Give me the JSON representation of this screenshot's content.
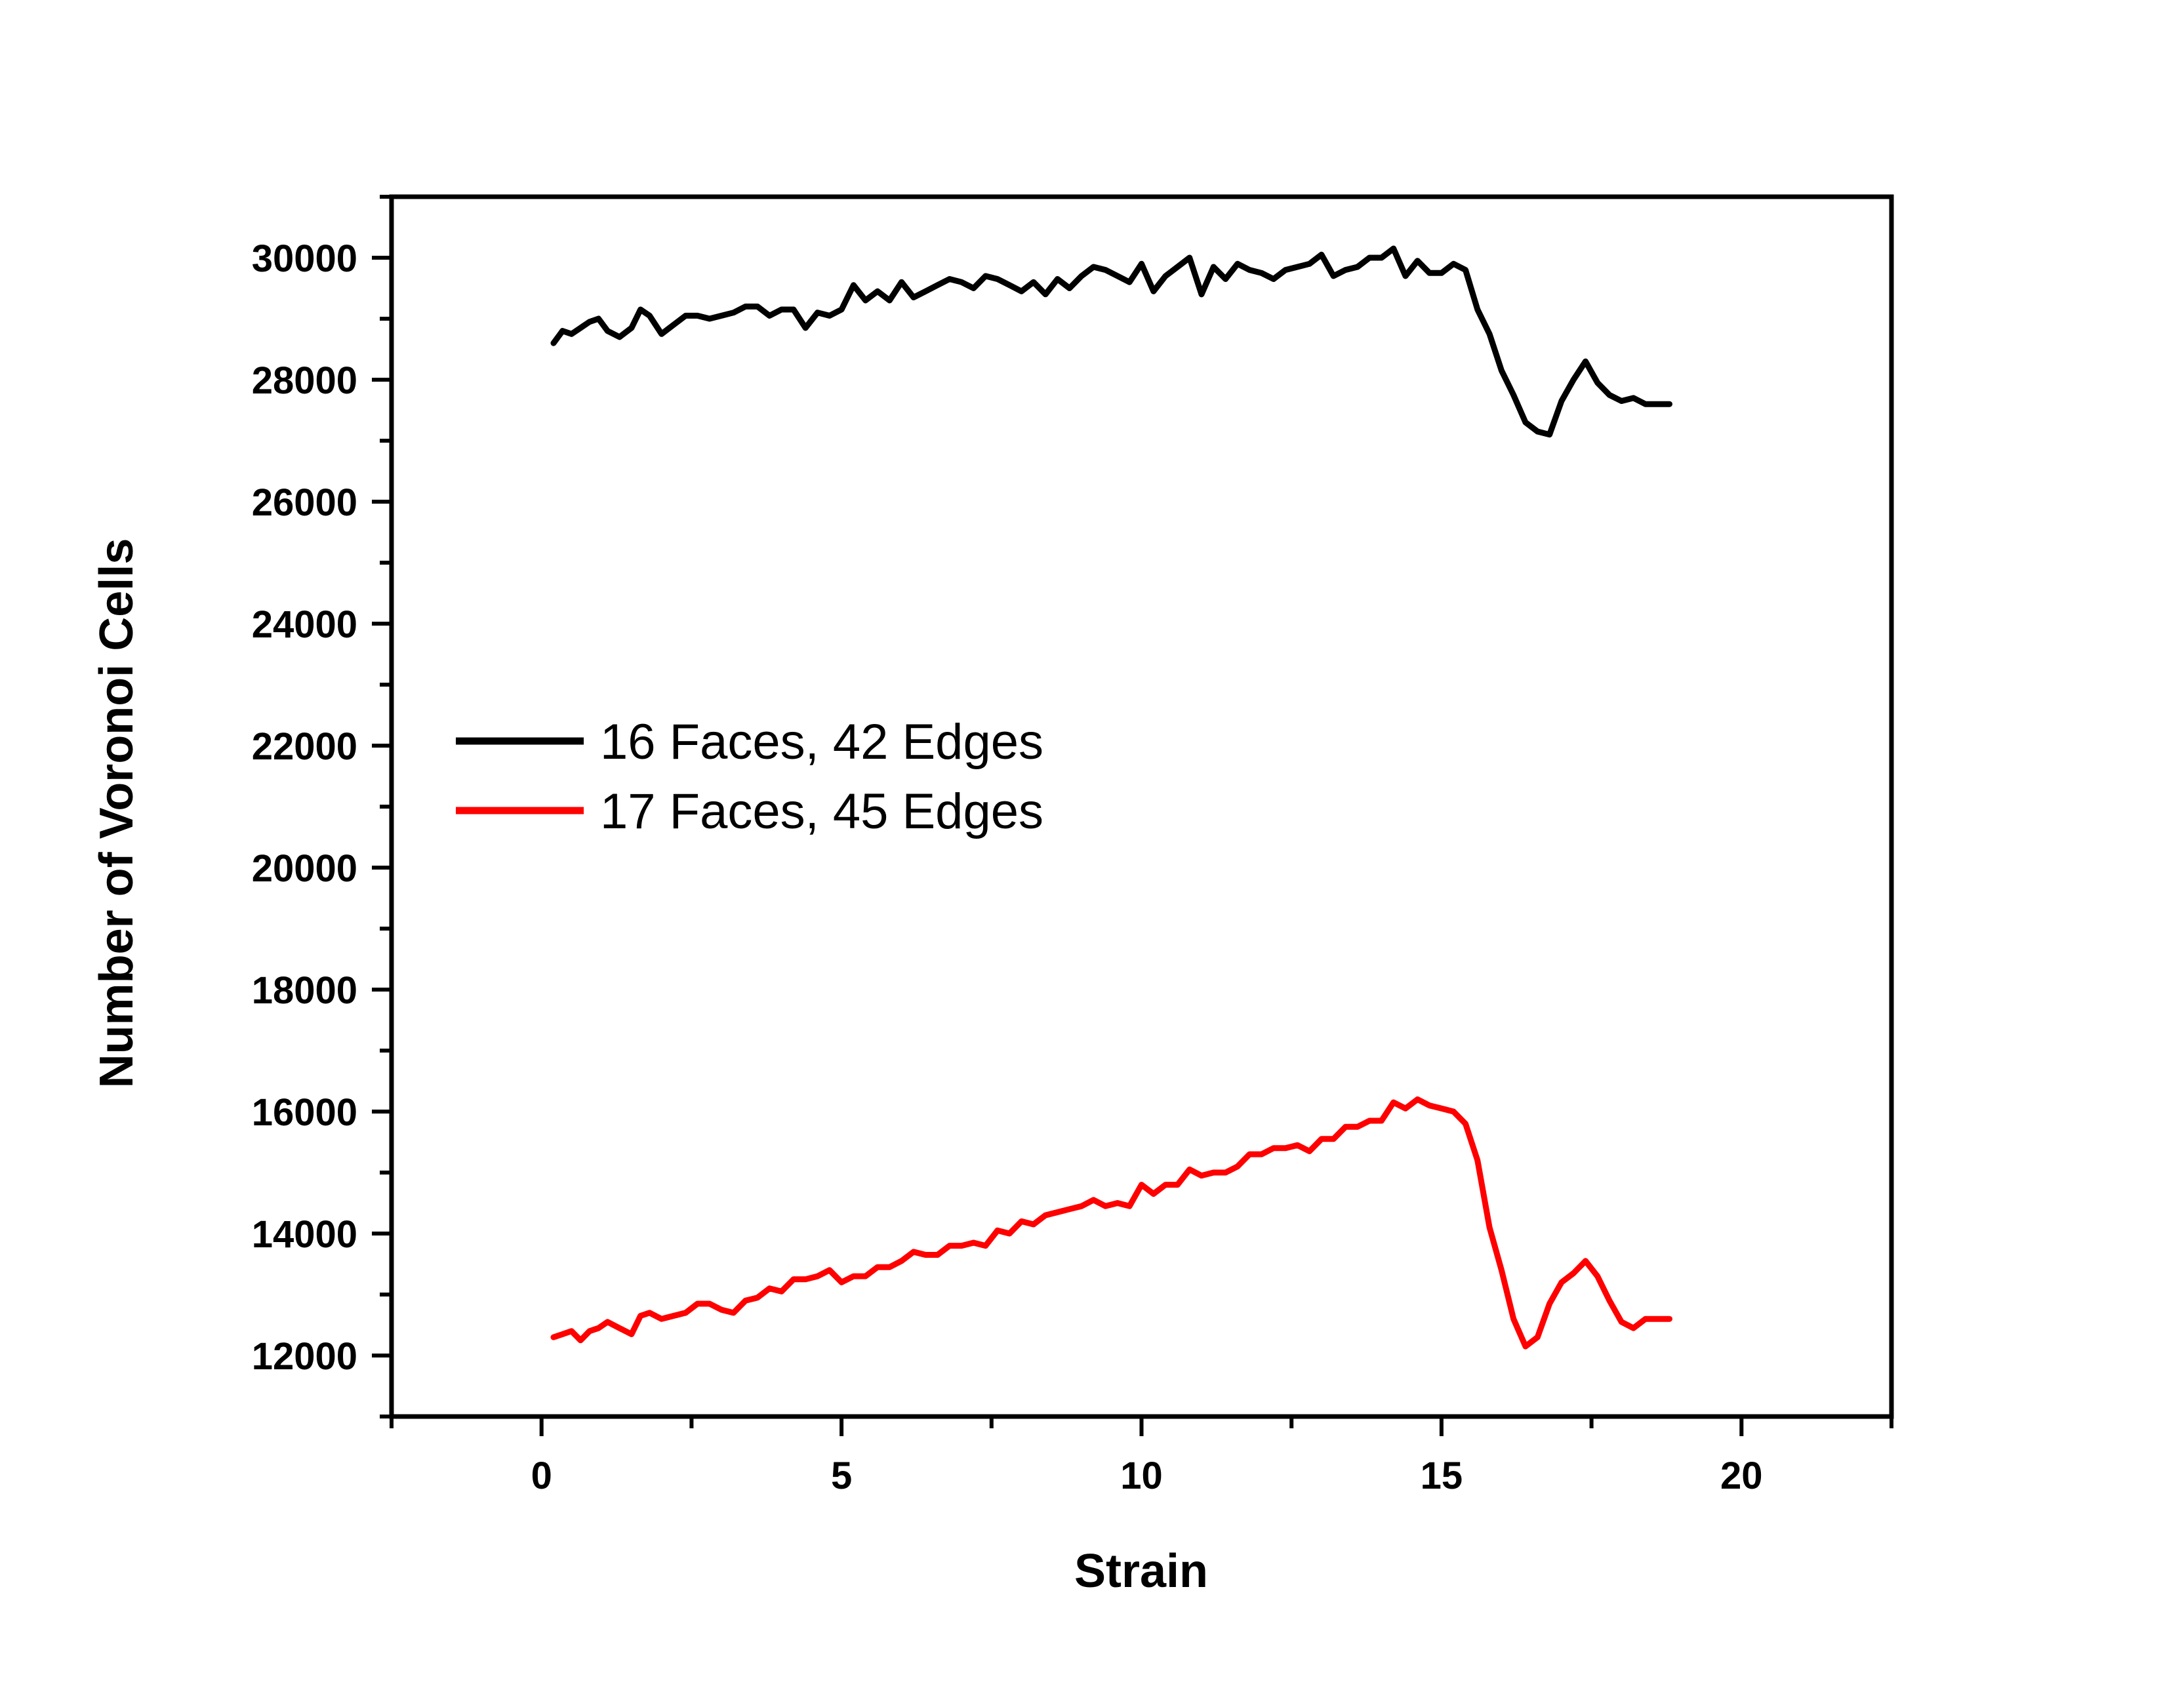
{
  "chart_data": {
    "type": "line",
    "title": "",
    "xlabel": "Strain",
    "ylabel": "Number of Voronoi Cells",
    "xlim": [
      -2.5,
      22.5
    ],
    "ylim": [
      11000,
      31000
    ],
    "xticks": [
      0,
      5,
      10,
      15,
      20
    ],
    "xtick_labels": [
      "0",
      "5",
      "10",
      "15",
      "20"
    ],
    "yticks": [
      12000,
      14000,
      16000,
      18000,
      20000,
      22000,
      24000,
      26000,
      28000,
      30000
    ],
    "ytick_labels": [
      "12000",
      "14000",
      "16000",
      "18000",
      "20000",
      "22000",
      "24000",
      "26000",
      "28000",
      "30000"
    ],
    "grid": false,
    "legend_position": "middle-left",
    "series": [
      {
        "name": "16 Faces, 42 Edges",
        "color": "#000000",
        "x": [
          0.2,
          0.35,
          0.5,
          0.65,
          0.8,
          0.95,
          1.1,
          1.3,
          1.5,
          1.65,
          1.8,
          2.0,
          2.2,
          2.4,
          2.6,
          2.8,
          3.0,
          3.2,
          3.4,
          3.6,
          3.8,
          4.0,
          4.2,
          4.4,
          4.6,
          4.8,
          5.0,
          5.2,
          5.4,
          5.6,
          5.8,
          6.0,
          6.2,
          6.4,
          6.6,
          6.8,
          7.0,
          7.2,
          7.4,
          7.6,
          7.8,
          8.0,
          8.2,
          8.4,
          8.6,
          8.8,
          9.0,
          9.2,
          9.4,
          9.6,
          9.8,
          10.0,
          10.2,
          10.4,
          10.6,
          10.8,
          11.0,
          11.2,
          11.4,
          11.6,
          11.8,
          12.0,
          12.2,
          12.4,
          12.6,
          12.8,
          13.0,
          13.2,
          13.4,
          13.6,
          13.8,
          14.0,
          14.2,
          14.4,
          14.6,
          14.8,
          15.0,
          15.2,
          15.4,
          15.6,
          15.8,
          16.0,
          16.2,
          16.4,
          16.6,
          16.8,
          17.0,
          17.2,
          17.4,
          17.6,
          17.8,
          18.0,
          18.2,
          18.4,
          18.6,
          18.8
        ],
        "y": [
          28600,
          28800,
          28750,
          28850,
          28950,
          29000,
          28800,
          28700,
          28850,
          29150,
          29050,
          28750,
          28900,
          29050,
          29050,
          29000,
          29050,
          29100,
          29200,
          29200,
          29050,
          29150,
          29150,
          28850,
          29100,
          29050,
          29150,
          29550,
          29300,
          29450,
          29300,
          29600,
          29350,
          29450,
          29550,
          29650,
          29600,
          29500,
          29700,
          29650,
          29550,
          29450,
          29600,
          29400,
          29650,
          29500,
          29700,
          29850,
          29800,
          29700,
          29600,
          29900,
          29450,
          29700,
          29850,
          30000,
          29400,
          29850,
          29650,
          29900,
          29800,
          29750,
          29650,
          29800,
          29850,
          29900,
          30050,
          29700,
          29800,
          29850,
          30000,
          30000,
          30150,
          29700,
          29950,
          29750,
          29750,
          29900,
          29800,
          29150,
          28750,
          28150,
          27750,
          27300,
          27150,
          27100,
          27650,
          28000,
          28300,
          27950,
          27750,
          27650,
          27700,
          27600,
          27600,
          27600
        ]
      },
      {
        "name": "17 Faces, 45 Edges",
        "color": "#ff0000",
        "x": [
          0.2,
          0.35,
          0.5,
          0.65,
          0.8,
          0.95,
          1.1,
          1.3,
          1.5,
          1.65,
          1.8,
          2.0,
          2.2,
          2.4,
          2.6,
          2.8,
          3.0,
          3.2,
          3.4,
          3.6,
          3.8,
          4.0,
          4.2,
          4.4,
          4.6,
          4.8,
          5.0,
          5.2,
          5.4,
          5.6,
          5.8,
          6.0,
          6.2,
          6.4,
          6.6,
          6.8,
          7.0,
          7.2,
          7.4,
          7.6,
          7.8,
          8.0,
          8.2,
          8.4,
          8.6,
          8.8,
          9.0,
          9.2,
          9.4,
          9.6,
          9.8,
          10.0,
          10.2,
          10.4,
          10.6,
          10.8,
          11.0,
          11.2,
          11.4,
          11.6,
          11.8,
          12.0,
          12.2,
          12.4,
          12.6,
          12.8,
          13.0,
          13.2,
          13.4,
          13.6,
          13.8,
          14.0,
          14.2,
          14.4,
          14.6,
          14.8,
          15.0,
          15.2,
          15.4,
          15.6,
          15.8,
          16.0,
          16.2,
          16.4,
          16.6,
          16.8,
          17.0,
          17.2,
          17.4,
          17.6,
          17.8,
          18.0,
          18.2,
          18.4,
          18.6,
          18.8
        ],
        "y": [
          12300,
          12350,
          12400,
          12250,
          12400,
          12450,
          12550,
          12450,
          12350,
          12650,
          12700,
          12600,
          12650,
          12700,
          12850,
          12850,
          12750,
          12700,
          12900,
          12950,
          13100,
          13050,
          13250,
          13250,
          13300,
          13400,
          13200,
          13300,
          13300,
          13450,
          13450,
          13550,
          13700,
          13650,
          13650,
          13800,
          13800,
          13850,
          13800,
          14050,
          14000,
          14200,
          14150,
          14300,
          14350,
          14400,
          14450,
          14550,
          14450,
          14500,
          14450,
          14800,
          14650,
          14800,
          14800,
          15050,
          14950,
          15000,
          15000,
          15100,
          15300,
          15300,
          15400,
          15400,
          15450,
          15350,
          15550,
          15550,
          15750,
          15750,
          15850,
          15850,
          16150,
          16050,
          16200,
          16100,
          16050,
          16000,
          15800,
          15200,
          14100,
          13400,
          12600,
          12150,
          12300,
          12850,
          13200,
          13350,
          13550,
          13300,
          12900,
          12550,
          12450,
          12600,
          12600,
          12600
        ]
      }
    ]
  }
}
